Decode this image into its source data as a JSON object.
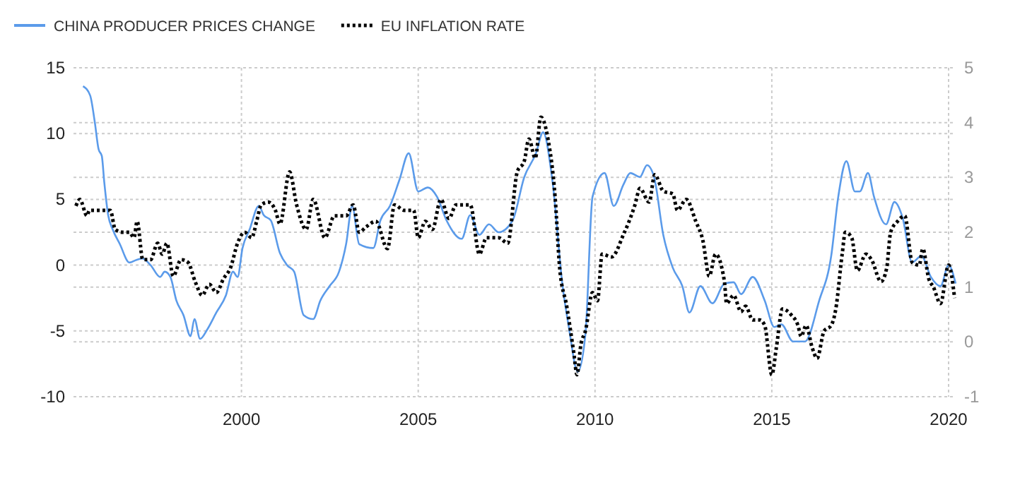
{
  "chart_data": {
    "type": "line",
    "legend": "top left",
    "grid": true,
    "xlim": [
      1995.25,
      2020.2
    ],
    "xticks": [
      2000,
      2005,
      2010,
      2015,
      2020
    ],
    "ylim": [
      -10,
      15
    ],
    "yticks": [
      -10,
      -5,
      0,
      5,
      10,
      15
    ],
    "y2lim": [
      -1,
      5
    ],
    "y2ticks": [
      -1,
      0,
      1,
      2,
      3,
      4,
      5
    ],
    "series": [
      {
        "name": "CHINA PRODUCER PRICES CHANGE",
        "color": "#5b9bea",
        "line_style": "solid",
        "x": [
          1995.52,
          1995.72,
          1995.85,
          1995.96,
          1996.05,
          1996.12,
          1996.23,
          1996.36,
          1996.56,
          1996.83,
          1997.03,
          1997.2,
          1997.43,
          1997.7,
          1997.83,
          1997.99,
          1998.16,
          1998.36,
          1998.56,
          1998.67,
          1998.83,
          1999.03,
          1999.29,
          1999.56,
          1999.76,
          1999.89,
          2000.03,
          2000.23,
          2000.49,
          2000.63,
          2000.83,
          2001.09,
          2001.29,
          2001.49,
          2001.76,
          2002.03,
          2002.23,
          2002.49,
          2002.76,
          2002.96,
          2003.13,
          2003.33,
          2003.73,
          2003.93,
          2004.2,
          2004.47,
          2004.73,
          2005.0,
          2005.27,
          2005.53,
          2005.8,
          2006.23,
          2006.47,
          2006.73,
          2007.0,
          2007.27,
          2007.67,
          2008.0,
          2008.33,
          2008.53,
          2008.8,
          2009.07,
          2009.27,
          2009.51,
          2009.73,
          2009.93,
          2010.27,
          2010.53,
          2010.8,
          2011.0,
          2011.27,
          2011.47,
          2011.67,
          2011.93,
          2012.2,
          2012.47,
          2012.67,
          2012.98,
          2013.32,
          2013.66,
          2013.92,
          2014.13,
          2014.46,
          2014.8,
          2015.07,
          2015.27,
          2015.6,
          2015.94,
          2016.34,
          2016.68,
          2016.88,
          2017.11,
          2017.35,
          2017.49,
          2017.72,
          2017.89,
          2018.23,
          2018.47,
          2018.7,
          2018.97,
          2019.23,
          2019.5,
          2019.77,
          2020.0,
          2020.2
        ],
        "values": [
          13.6,
          12.9,
          10.9,
          8.8,
          8.3,
          6.3,
          3.8,
          2.7,
          1.6,
          0.2,
          0.4,
          0.5,
          0,
          -0.9,
          -0.5,
          -0.9,
          -2.7,
          -3.8,
          -5.4,
          -4.1,
          -5.6,
          -4.9,
          -3.6,
          -2.3,
          -0.5,
          -0.9,
          1.3,
          2.7,
          4.5,
          3.8,
          3.4,
          0.9,
          0,
          -0.5,
          -3.8,
          -4.1,
          -2.7,
          -1.6,
          -0.5,
          1.6,
          4.5,
          1.6,
          1.3,
          3.4,
          4.5,
          6.5,
          8.5,
          5.6,
          5.9,
          5.2,
          3.4,
          2.0,
          3.8,
          2.3,
          3.1,
          2.5,
          3.4,
          6.7,
          8.5,
          10.1,
          6.3,
          -1.3,
          -4.9,
          -8.1,
          -5.2,
          5.2,
          7.0,
          4.5,
          6.1,
          7.0,
          6.7,
          7.6,
          6.7,
          2.3,
          -0.2,
          -1.6,
          -3.6,
          -1.6,
          -2.9,
          -1.4,
          -1.3,
          -2.2,
          -0.9,
          -2.7,
          -4.7,
          -4.5,
          -5.8,
          -5.8,
          -2.7,
          0.7,
          5.2,
          7.9,
          5.6,
          5.6,
          7.0,
          5.2,
          3.1,
          4.8,
          3.6,
          0.2,
          0.7,
          -0.9,
          -1.6,
          0,
          -1.4
        ]
      },
      {
        "name": "EU INFLATION RATE",
        "color": "#000000",
        "line_style": "dotted",
        "axis": "y2",
        "x": [
          1995.32,
          1995.43,
          1995.63,
          1995.7,
          1996.29,
          1996.43,
          1996.63,
          1996.83,
          1996.96,
          1997.05,
          1997.21,
          1997.43,
          1997.63,
          1997.76,
          1997.89,
          1998.07,
          1998.29,
          1998.49,
          1998.69,
          1998.89,
          1999.09,
          1999.29,
          1999.49,
          1999.69,
          1999.89,
          2000.09,
          2000.29,
          2000.43,
          2000.56,
          2000.76,
          2000.96,
          2001.09,
          2001.36,
          2001.56,
          2001.83,
          2002.03,
          2002.36,
          2002.63,
          2002.96,
          2003.16,
          2003.33,
          2003.53,
          2003.8,
          2004.13,
          2004.33,
          2004.6,
          2004.87,
          2005.0,
          2005.2,
          2005.4,
          2005.64,
          2005.87,
          2006.07,
          2006.27,
          2006.47,
          2006.73,
          2006.93,
          2007.27,
          2007.53,
          2007.8,
          2008.0,
          2008.13,
          2008.31,
          2008.47,
          2008.67,
          2008.87,
          2009.0,
          2009.2,
          2009.4,
          2009.49,
          2009.6,
          2009.73,
          2009.93,
          2010.07,
          2010.2,
          2010.47,
          2010.8,
          2011.13,
          2011.27,
          2011.53,
          2011.69,
          2011.93,
          2012.2,
          2012.33,
          2012.58,
          2012.85,
          2013.05,
          2013.23,
          2013.41,
          2013.66,
          2013.72,
          2013.92,
          2014.13,
          2014.26,
          2014.46,
          2014.66,
          2014.8,
          2015.0,
          2015.13,
          2015.3,
          2015.54,
          2015.74,
          2015.83,
          2015.97,
          2016.14,
          2016.28,
          2016.48,
          2016.68,
          2016.81,
          2016.99,
          2017.08,
          2017.26,
          2017.42,
          2017.66,
          2017.82,
          2018.09,
          2018.25,
          2018.36,
          2018.56,
          2018.76,
          2018.97,
          2019.17,
          2019.27,
          2019.44,
          2019.57,
          2019.77,
          2020.0,
          2020.17
        ],
        "values": [
          2.48,
          2.6,
          2.3,
          2.4,
          2.4,
          2.05,
          2.0,
          2.0,
          1.9,
          2.2,
          1.5,
          1.5,
          1.8,
          1.6,
          1.8,
          1.2,
          1.5,
          1.45,
          1.1,
          0.85,
          1.05,
          0.9,
          1.15,
          1.35,
          1.8,
          2.0,
          1.9,
          2.2,
          2.5,
          2.55,
          2.4,
          2.15,
          3.1,
          2.5,
          2.05,
          2.6,
          1.9,
          2.3,
          2.3,
          2.5,
          2.0,
          2.1,
          2.2,
          1.7,
          2.5,
          2.4,
          2.4,
          1.9,
          2.2,
          2.05,
          2.6,
          2.25,
          2.5,
          2.5,
          2.5,
          1.6,
          1.9,
          1.9,
          1.8,
          3.1,
          3.3,
          3.7,
          3.35,
          4.1,
          3.7,
          2.65,
          1.35,
          0.65,
          -0.2,
          -0.6,
          -0.05,
          0.2,
          0.9,
          0.75,
          1.6,
          1.55,
          1.95,
          2.5,
          2.8,
          2.55,
          3.05,
          2.75,
          2.7,
          2.4,
          2.6,
          2.2,
          1.85,
          1.2,
          1.6,
          1.1,
          0.7,
          0.85,
          0.55,
          0.65,
          0.4,
          0.4,
          0.3,
          -0.6,
          -0.1,
          0.6,
          0.5,
          0.3,
          0.1,
          0.3,
          -0.1,
          -0.3,
          0.2,
          0.3,
          0.6,
          1.6,
          2.0,
          1.9,
          1.3,
          1.6,
          1.5,
          1.1,
          1.35,
          2.0,
          2.2,
          2.3,
          1.45,
          1.4,
          1.7,
          1.15,
          1.0,
          0.7,
          1.4,
          0.8
        ]
      }
    ]
  }
}
